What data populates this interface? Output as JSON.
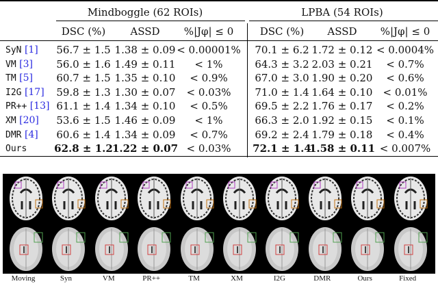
{
  "table": {
    "groups": [
      "Mindboggle (62 ROIs)",
      "LPBA (54 ROIs)"
    ],
    "columns": [
      "DSC (%)",
      "ASSD",
      "%|Jφ| ≤ 0",
      "DSC (%)",
      "ASSD",
      "%|Jφ| ≤ 0"
    ],
    "rows": [
      {
        "method": "SyN",
        "cite": "[1]",
        "values": [
          "56.7 ± 1.5",
          "1.38 ± 0.09",
          "< 0.00001%",
          "70.1 ± 6.2",
          "1.72 ± 0.12",
          "< 0.0004%"
        ]
      },
      {
        "method": "VM",
        "cite": "[3]",
        "values": [
          "56.0 ± 1.6",
          "1.49 ± 0.11",
          "< 1%",
          "64.3 ± 3.2",
          "2.03 ± 0.21",
          "< 0.7%"
        ]
      },
      {
        "method": "TM",
        "cite": "[5]",
        "values": [
          "60.7 ± 1.5",
          "1.35 ± 0.10",
          "< 0.9%",
          "67.0 ± 3.0",
          "1.90 ± 0.20",
          "< 0.6%"
        ]
      },
      {
        "method": "I2G",
        "cite": "[17]",
        "values": [
          "59.8 ± 1.3",
          "1.30 ± 0.07",
          "< 0.03%",
          "71.0 ± 1.4",
          "1.64 ± 0.10",
          "< 0.01%"
        ]
      },
      {
        "method": "PR++",
        "cite": "[13]",
        "values": [
          "61.1 ± 1.4",
          "1.34 ± 0.10",
          "< 0.5%",
          "69.5 ± 2.2",
          "1.76 ± 0.17",
          "< 0.2%"
        ]
      },
      {
        "method": "XM",
        "cite": "[20]",
        "values": [
          "53.6 ± 1.5",
          "1.46 ± 0.09",
          "< 1%",
          "66.3 ± 2.0",
          "1.92 ± 0.15",
          "< 0.1%"
        ]
      },
      {
        "method": "DMR",
        "cite": "[4]",
        "values": [
          "60.6 ± 1.4",
          "1.34 ± 0.09",
          "< 0.7%",
          "69.2 ± 2.4",
          "1.79 ± 0.18",
          "< 0.4%"
        ]
      },
      {
        "method": "Ours",
        "cite": "",
        "values": [
          "62.8 ± 1.2",
          "1.22 ± 0.07",
          "< 0.03%",
          "72.1 ± 1.4",
          "1.58 ± 0.11",
          "< 0.007%"
        ],
        "bold": [
          0,
          1,
          3,
          4
        ]
      }
    ]
  },
  "figure": {
    "labels": [
      "Moving",
      "Syn",
      "VM",
      "PR++",
      "TM",
      "XM",
      "I2G",
      "DMR",
      "Ours",
      "Fixed"
    ],
    "box_colors": {
      "top_left": "#b040c0",
      "top_right": "#c07010",
      "bottom_right": "#50a050",
      "bottom_center": "#d04040"
    }
  }
}
